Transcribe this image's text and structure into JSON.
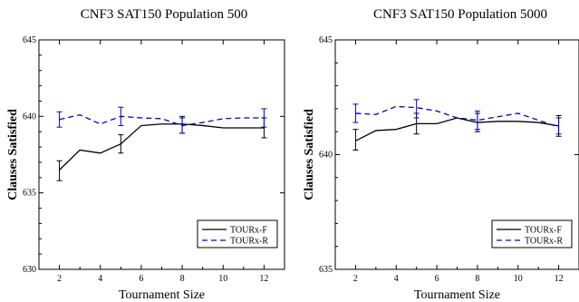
{
  "chart_data": [
    {
      "type": "line",
      "title": "CNF3 SAT150 Population 500",
      "xlabel": "Tournament Size",
      "ylabel": "Clauses Satisfied",
      "xlim": [
        1,
        13
      ],
      "ylim": [
        630,
        645
      ],
      "xticks": [
        2,
        4,
        6,
        8,
        10,
        12
      ],
      "yticks": [
        630,
        635,
        640,
        645
      ],
      "grid": false,
      "legend_position": "bottom-right",
      "series": [
        {
          "name": "TOURx-F",
          "color": "#000000",
          "style": "solid",
          "x": [
            2,
            3,
            4,
            5,
            6,
            7,
            8,
            9,
            10,
            11,
            12
          ],
          "y": [
            636.5,
            637.8,
            637.6,
            638.2,
            639.4,
            639.5,
            639.5,
            639.4,
            639.25,
            639.25,
            639.25
          ],
          "error_bars": [
            {
              "x": 2,
              "low": 635.8,
              "high": 637.1
            },
            {
              "x": 5,
              "low": 637.6,
              "high": 638.8
            },
            {
              "x": 8,
              "low": 638.9,
              "high": 640.0
            },
            {
              "x": 12,
              "low": 638.6,
              "high": 639.9
            }
          ]
        },
        {
          "name": "TOURx-R",
          "color": "#0000cc",
          "style": "dashed",
          "x": [
            2,
            3,
            4,
            5,
            6,
            7,
            8,
            9,
            10,
            11,
            12
          ],
          "y": [
            639.8,
            640.1,
            639.5,
            640.0,
            639.9,
            639.85,
            639.4,
            639.6,
            639.85,
            639.9,
            639.9
          ],
          "error_bars": [
            {
              "x": 2,
              "low": 639.3,
              "high": 640.3
            },
            {
              "x": 5,
              "low": 639.4,
              "high": 640.6
            },
            {
              "x": 8,
              "low": 638.9,
              "high": 639.9
            },
            {
              "x": 12,
              "low": 639.3,
              "high": 640.5
            }
          ]
        }
      ]
    },
    {
      "type": "line",
      "title": "CNF3 SAT150 Population 5000",
      "xlabel": "Tournament Size",
      "ylabel": "Clauses Satisfied",
      "xlim": [
        1,
        13
      ],
      "ylim": [
        635,
        645
      ],
      "xticks": [
        2,
        4,
        6,
        8,
        10,
        12
      ],
      "yticks": [
        635,
        640,
        645
      ],
      "grid": false,
      "legend_position": "bottom-right",
      "series": [
        {
          "name": "TOURx-F",
          "color": "#000000",
          "style": "solid",
          "x": [
            2,
            3,
            4,
            5,
            6,
            7,
            8,
            9,
            10,
            11,
            12
          ],
          "y": [
            640.6,
            641.05,
            641.1,
            641.35,
            641.35,
            641.6,
            641.4,
            641.45,
            641.45,
            641.4,
            641.25
          ],
          "error_bars": [
            {
              "x": 2,
              "low": 640.2,
              "high": 641.1
            },
            {
              "x": 5,
              "low": 640.9,
              "high": 641.8
            },
            {
              "x": 8,
              "low": 641.0,
              "high": 641.8
            },
            {
              "x": 12,
              "low": 640.8,
              "high": 641.7
            }
          ]
        },
        {
          "name": "TOURx-R",
          "color": "#0000cc",
          "style": "dashed",
          "x": [
            2,
            3,
            4,
            5,
            6,
            7,
            8,
            9,
            10,
            11,
            12
          ],
          "y": [
            641.8,
            641.75,
            642.1,
            642.05,
            641.9,
            641.6,
            641.5,
            641.65,
            641.8,
            641.5,
            641.2
          ],
          "error_bars": [
            {
              "x": 2,
              "low": 641.4,
              "high": 642.2
            },
            {
              "x": 5,
              "low": 641.6,
              "high": 642.4
            },
            {
              "x": 8,
              "low": 641.1,
              "high": 641.9
            },
            {
              "x": 12,
              "low": 640.9,
              "high": 641.6
            }
          ]
        }
      ]
    }
  ]
}
